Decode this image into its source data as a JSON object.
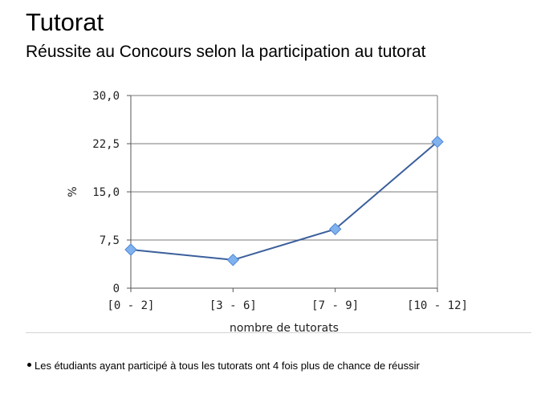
{
  "slide": {
    "title": "Tutorat",
    "subtitle": "Réussite au Concours selon la participation au tutorat",
    "note": "Les étudiants ayant participé à tous les tutorats ont 4 fois plus de chance de réussir"
  },
  "chart_data": {
    "type": "line",
    "title": "",
    "xlabel": "nombre de tutorats",
    "ylabel": "%",
    "categories": [
      "[0 - 2]",
      "[3 - 6]",
      "[7 - 9]",
      "[10 - 12]"
    ],
    "series": [
      {
        "values": [
          6.0,
          4.4,
          9.2,
          22.8
        ]
      }
    ],
    "ylim": [
      0,
      30
    ],
    "yticks": [
      0,
      7.5,
      15,
      22.5,
      30
    ],
    "ytick_labels": [
      "0",
      "7,5",
      "15,0",
      "22,5",
      "30,0"
    ],
    "grid": "horizontal",
    "legend": "none",
    "colors": {
      "line": "#3b5f9c",
      "marker": "#7fb2ee",
      "marker_stroke": "#4f86d6",
      "grid": "#7a7a7a",
      "axis": "#555555"
    }
  }
}
